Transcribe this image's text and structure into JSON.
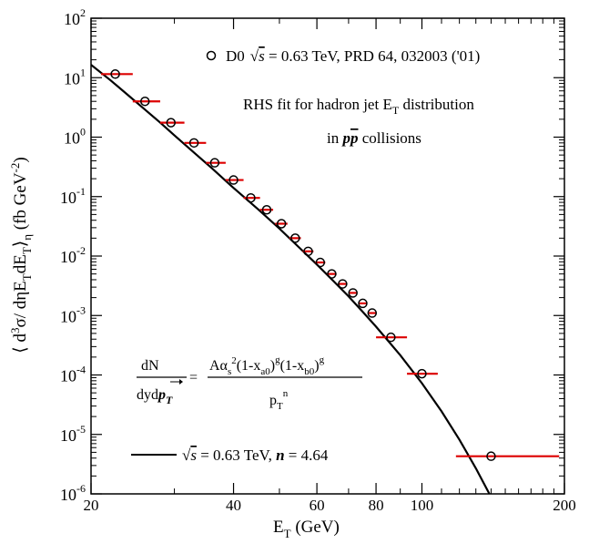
{
  "chart_data": {
    "type": "scatter",
    "xscale": "log",
    "yscale": "log",
    "xlim": [
      20,
      200
    ],
    "ylim": [
      1e-06,
      100
    ],
    "xlabel": {
      "main": "E",
      "sub": "T",
      "rest": " (GeV)"
    },
    "ylabel": "⟨ d³σ/ dηE_TdE_T⟩_η (fb GeV⁻²)",
    "x_ticks": [
      {
        "value": 20,
        "label": "20"
      },
      {
        "value": 40,
        "label": "40"
      },
      {
        "value": 60,
        "label": "60"
      },
      {
        "value": 80,
        "label": "80"
      },
      {
        "value": 100,
        "label": "100"
      },
      {
        "value": 200,
        "label": "200"
      }
    ],
    "y_ticks": [
      {
        "value": 1e-06,
        "base": "10",
        "exp": "-6"
      },
      {
        "value": 1e-05,
        "base": "10",
        "exp": "-5"
      },
      {
        "value": 0.0001,
        "base": "10",
        "exp": "-4"
      },
      {
        "value": 0.001,
        "base": "10",
        "exp": "-3"
      },
      {
        "value": 0.01,
        "base": "10",
        "exp": "-2"
      },
      {
        "value": 0.1,
        "base": "10",
        "exp": "-1"
      },
      {
        "value": 1,
        "base": "10",
        "exp": "0"
      },
      {
        "value": 10,
        "base": "10",
        "exp": "1"
      },
      {
        "value": 100,
        "base": "10",
        "exp": "2"
      }
    ],
    "series": [
      {
        "name": "D0 √s = 0.63 TeV, PRD 64, 032003 ('01)",
        "marker": "open-circle",
        "errorbar_color": "#dd0000",
        "points": [
          {
            "x": 22.5,
            "y": 11.5,
            "xerr": [
              21.0,
              24.5
            ]
          },
          {
            "x": 26.0,
            "y": 4.0,
            "xerr": [
              24.5,
              28.0
            ]
          },
          {
            "x": 29.5,
            "y": 1.75,
            "xerr": [
              28.0,
              31.5
            ]
          },
          {
            "x": 33.0,
            "y": 0.8,
            "xerr": [
              31.5,
              35.0
            ]
          },
          {
            "x": 36.5,
            "y": 0.37,
            "xerr": [
              35.0,
              38.5
            ]
          },
          {
            "x": 40.0,
            "y": 0.19,
            "xerr": [
              38.5,
              42.0
            ]
          },
          {
            "x": 43.5,
            "y": 0.095,
            "xerr": [
              42.0,
              45.5
            ]
          },
          {
            "x": 47.0,
            "y": 0.06,
            "xerr": [
              45.5,
              48.5
            ]
          },
          {
            "x": 50.5,
            "y": 0.035,
            "xerr": [
              49.0,
              52.0
            ]
          },
          {
            "x": 54.0,
            "y": 0.02,
            "xerr": [
              52.5,
              55.5
            ]
          },
          {
            "x": 57.5,
            "y": 0.012,
            "xerr": [
              56.0,
              59.0
            ]
          },
          {
            "x": 61.0,
            "y": 0.0078,
            "xerr": [
              59.5,
              62.5
            ]
          },
          {
            "x": 64.5,
            "y": 0.005,
            "xerr": [
              63.0,
              66.0
            ]
          },
          {
            "x": 68.0,
            "y": 0.0034,
            "xerr": [
              66.5,
              69.5
            ]
          },
          {
            "x": 71.5,
            "y": 0.0024,
            "xerr": [
              70.0,
              73.0
            ]
          },
          {
            "x": 75.0,
            "y": 0.0016,
            "xerr": [
              73.5,
              76.5
            ]
          },
          {
            "x": 78.5,
            "y": 0.0011,
            "xerr": [
              77.0,
              80.0
            ]
          },
          {
            "x": 86.0,
            "y": 0.00043,
            "xerr": [
              80.0,
              93.0
            ]
          },
          {
            "x": 100.0,
            "y": 0.000105,
            "xerr": [
              93.0,
              108.0
            ]
          },
          {
            "x": 140.0,
            "y": 4.3e-06,
            "xerr": [
              118.0,
              195.0
            ]
          }
        ]
      },
      {
        "name": "√s = 0.63 TeV, n = 4.64",
        "style": "solid-line",
        "color": "#000000",
        "curve": {
          "x": [
            20,
            22,
            24,
            26,
            28,
            30,
            33,
            36,
            40,
            45,
            50,
            55,
            60,
            65,
            70,
            75,
            80,
            90,
            100,
            110,
            120,
            130,
            140,
            145
          ],
          "y": [
            16.5,
            9.0,
            5.0,
            2.9,
            1.75,
            1.07,
            0.55,
            0.3,
            0.14,
            0.062,
            0.029,
            0.014,
            0.0072,
            0.0038,
            0.0021,
            0.00115,
            0.00065,
            0.000215,
            7.25e-05,
            2.45e-05,
            8.2e-06,
            2.7e-06,
            8.8e-07,
            5e-07
          ]
        }
      }
    ],
    "annotations": {
      "legend_top_rest": " = 0.63 TeV, PRD 64, 032003 ('01)",
      "legend_top_prefix": "D0",
      "rhs_fit_line1": "RHS fit for hadron jet E",
      "rhs_fit_line1_sub": "T",
      "rhs_fit_line1_rest": " distribution",
      "rhs_fit_line2_prefix": "in ",
      "rhs_fit_line2_rest": " collisions",
      "formula_lhs_num": "dN",
      "formula_lhs_den": "dyd",
      "formula_rhs_num": "Aα",
      "formula_rhs_den": "p",
      "legend_bottom_rest": " = 0.63 TeV, ",
      "legend_bottom_n": "n",
      "legend_bottom_val": " = 4.64"
    }
  }
}
